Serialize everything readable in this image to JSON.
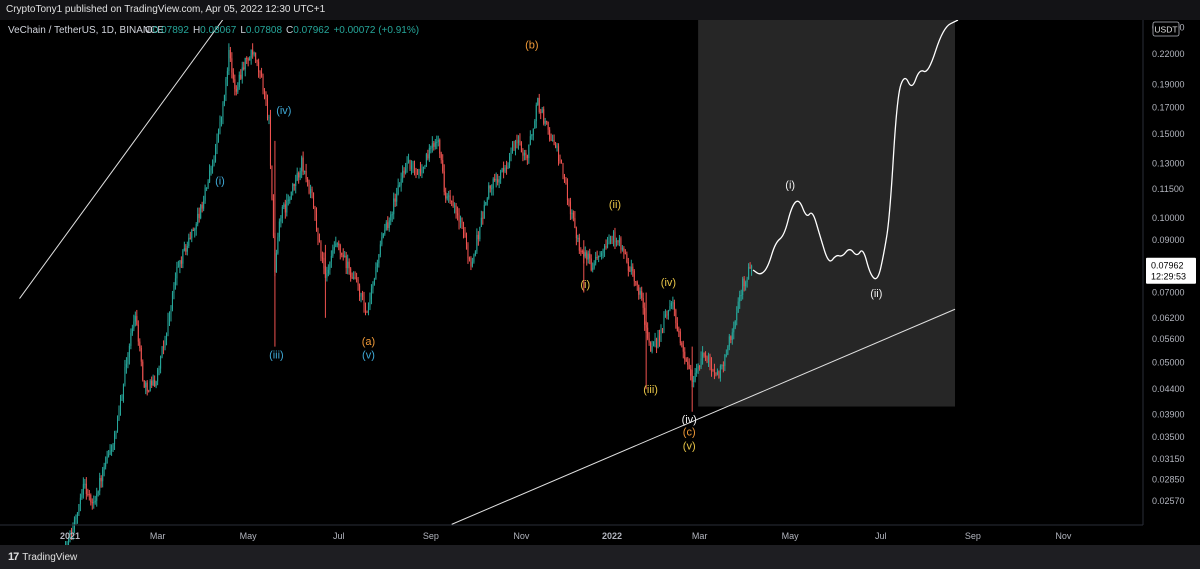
{
  "header": {
    "published": "CryptoTony1 published on TradingView.com, Apr 05, 2022 12:30 UTC+1"
  },
  "footer": {
    "brand": "TradingView"
  },
  "chart_data": {
    "type": "candlestick",
    "symbol": "VeChain / TetherUS, 1D, BINANCE",
    "ohlc": {
      "o_label": "O",
      "o": "0.07892",
      "h_label": "H",
      "h": "0.08067",
      "l_label": "L",
      "l": "0.07808",
      "c_label": "C",
      "c": "0.07962",
      "change": "+0.00072 (+0.91%)"
    },
    "currency": "USDT",
    "last_price": "0.07962",
    "countdown": "12:29:53",
    "y_scale": "log",
    "y_ticks": [
      "0.25000",
      "0.22000",
      "0.19000",
      "0.17000",
      "0.15000",
      "0.13000",
      "0.11500",
      "0.10000",
      "0.09000",
      "0.08000",
      "0.07000",
      "0.06200",
      "0.05600",
      "0.05000",
      "0.04400",
      "0.03900",
      "0.03500",
      "0.03150",
      "0.02850",
      "0.02570"
    ],
    "x_ticks": [
      {
        "label": "2021",
        "date": "2021-01-01",
        "bold": true
      },
      {
        "label": "Mar",
        "date": "2021-03-01"
      },
      {
        "label": "May",
        "date": "2021-05-01"
      },
      {
        "label": "Jul",
        "date": "2021-07-01"
      },
      {
        "label": "Sep",
        "date": "2021-09-01"
      },
      {
        "label": "Nov",
        "date": "2021-11-01"
      },
      {
        "label": "2022",
        "date": "2022-01-01",
        "bold": true
      },
      {
        "label": "Mar",
        "date": "2022-03-01"
      },
      {
        "label": "May",
        "date": "2022-05-01"
      },
      {
        "label": "Jul",
        "date": "2022-07-01"
      },
      {
        "label": "Sep",
        "date": "2022-09-01"
      },
      {
        "label": "Nov",
        "date": "2022-11-01"
      }
    ],
    "price_path": [
      [
        "2020-12-28",
        0.02
      ],
      [
        "2021-01-03",
        0.0226
      ],
      [
        "2021-01-10",
        0.0282
      ],
      [
        "2021-01-16",
        0.0252
      ],
      [
        "2021-01-24",
        0.03
      ],
      [
        "2021-02-01",
        0.0355
      ],
      [
        "2021-02-08",
        0.0502
      ],
      [
        "2021-02-14",
        0.064
      ],
      [
        "2021-02-20",
        0.0442
      ],
      [
        "2021-02-28",
        0.046
      ],
      [
        "2021-03-06",
        0.056
      ],
      [
        "2021-03-14",
        0.078
      ],
      [
        "2021-03-22",
        0.09
      ],
      [
        "2021-03-30",
        0.104
      ],
      [
        "2021-04-08",
        0.135
      ],
      [
        "2021-04-14",
        0.17
      ],
      [
        "2021-04-18",
        0.22
      ],
      [
        "2021-04-22",
        0.185
      ],
      [
        "2021-04-28",
        0.21
      ],
      [
        "2021-05-04",
        0.22
      ],
      [
        "2021-05-10",
        0.195
      ],
      [
        "2021-05-15",
        0.16
      ],
      [
        "2021-05-19",
        0.075
      ],
      [
        "2021-05-22",
        0.1
      ],
      [
        "2021-05-29",
        0.11
      ],
      [
        "2021-06-06",
        0.13
      ],
      [
        "2021-06-13",
        0.11
      ],
      [
        "2021-06-22",
        0.074
      ],
      [
        "2021-06-29",
        0.088
      ],
      [
        "2021-07-07",
        0.079
      ],
      [
        "2021-07-14",
        0.072
      ],
      [
        "2021-07-20",
        0.062
      ],
      [
        "2021-07-28",
        0.085
      ],
      [
        "2021-08-08",
        0.11
      ],
      [
        "2021-08-15",
        0.13
      ],
      [
        "2021-08-25",
        0.125
      ],
      [
        "2021-09-06",
        0.15
      ],
      [
        "2021-09-10",
        0.115
      ],
      [
        "2021-09-22",
        0.096
      ],
      [
        "2021-09-28",
        0.08
      ],
      [
        "2021-10-10",
        0.115
      ],
      [
        "2021-10-20",
        0.125
      ],
      [
        "2021-10-28",
        0.145
      ],
      [
        "2021-11-05",
        0.135
      ],
      [
        "2021-11-12",
        0.175
      ],
      [
        "2021-11-17",
        0.158
      ],
      [
        "2021-11-26",
        0.135
      ],
      [
        "2021-12-04",
        0.105
      ],
      [
        "2021-12-10",
        0.088
      ],
      [
        "2021-12-18",
        0.08
      ],
      [
        "2021-12-27",
        0.089
      ],
      [
        "2022-01-04",
        0.092
      ],
      [
        "2022-01-10",
        0.082
      ],
      [
        "2022-01-20",
        0.07
      ],
      [
        "2022-01-27",
        0.052
      ],
      [
        "2022-02-04",
        0.059
      ],
      [
        "2022-02-10",
        0.068
      ],
      [
        "2022-02-17",
        0.054
      ],
      [
        "2022-02-24",
        0.046
      ],
      [
        "2022-03-04",
        0.052
      ],
      [
        "2022-03-14",
        0.047
      ],
      [
        "2022-03-23",
        0.058
      ],
      [
        "2022-03-30",
        0.073
      ],
      [
        "2022-04-05",
        0.0796
      ]
    ],
    "projection_path": [
      [
        "2022-04-06",
        0.078
      ],
      [
        "2022-04-11",
        0.076
      ],
      [
        "2022-04-16",
        0.079
      ],
      [
        "2022-04-21",
        0.089
      ],
      [
        "2022-04-27",
        0.092
      ],
      [
        "2022-05-02",
        0.106
      ],
      [
        "2022-05-07",
        0.11
      ],
      [
        "2022-05-12",
        0.1
      ],
      [
        "2022-05-16",
        0.104
      ],
      [
        "2022-05-21",
        0.092
      ],
      [
        "2022-05-27",
        0.08
      ],
      [
        "2022-06-01",
        0.084
      ],
      [
        "2022-06-05",
        0.083
      ],
      [
        "2022-06-10",
        0.087
      ],
      [
        "2022-06-15",
        0.083
      ],
      [
        "2022-06-19",
        0.087
      ],
      [
        "2022-06-24",
        0.076
      ],
      [
        "2022-06-29",
        0.074
      ],
      [
        "2022-07-03",
        0.084
      ],
      [
        "2022-07-07",
        0.1
      ],
      [
        "2022-07-12",
        0.18
      ],
      [
        "2022-07-17",
        0.2
      ],
      [
        "2022-07-22",
        0.185
      ],
      [
        "2022-07-27",
        0.205
      ],
      [
        "2022-08-02",
        0.2
      ],
      [
        "2022-08-12",
        0.25
      ],
      [
        "2022-08-22",
        0.28
      ]
    ],
    "shaded_region": {
      "x0": "2022-02-28",
      "x1": "2022-08-20",
      "y_top": 0.28,
      "y_bottom": 0.0405
    },
    "trendlines": [
      {
        "x0": "2020-11-28",
        "y0": 0.068,
        "x1": "2021-04-18",
        "y1": 0.27
      },
      {
        "x0": "2021-09-15",
        "y0": 0.023,
        "x1": "2022-08-20",
        "y1": 0.0646
      }
    ],
    "wave_labels": [
      {
        "text": "(i)",
        "date": "2021-04-12",
        "price": 0.12,
        "color": "#3fa9d6"
      },
      {
        "text": "(iii)",
        "date": "2021-05-20",
        "price": 0.052,
        "color": "#3fa9d6"
      },
      {
        "text": "(iv)",
        "date": "2021-05-25",
        "price": 0.168,
        "color": "#3fa9d6"
      },
      {
        "text": "(a)",
        "date": "2021-07-21",
        "price": 0.0555,
        "color": "#f19a38"
      },
      {
        "text": "(v)",
        "date": "2021-07-21",
        "price": 0.052,
        "color": "#3fa9d6"
      },
      {
        "text": "(b)",
        "date": "2021-11-08",
        "price": 0.23,
        "color": "#f19a38"
      },
      {
        "text": "(i)",
        "date": "2021-12-14",
        "price": 0.073,
        "color": "#e8c547"
      },
      {
        "text": "(ii)",
        "date": "2022-01-03",
        "price": 0.107,
        "color": "#e8c547"
      },
      {
        "text": "(iii)",
        "date": "2022-01-27",
        "price": 0.044,
        "color": "#e8c547"
      },
      {
        "text": "(iv)",
        "date": "2022-02-08",
        "price": 0.0736,
        "color": "#e8c547"
      },
      {
        "text": "(iv)",
        "date": "2022-02-22",
        "price": 0.0381,
        "color": "#f0f0f0"
      },
      {
        "text": "(c)",
        "date": "2022-02-22",
        "price": 0.0359,
        "color": "#f19a38"
      },
      {
        "text": "(v)",
        "date": "2022-02-22",
        "price": 0.0336,
        "color": "#e8c547"
      },
      {
        "text": "(i)",
        "date": "2022-05-01",
        "price": 0.1175,
        "color": "#f0f0f0"
      },
      {
        "text": "(ii)",
        "date": "2022-06-28",
        "price": 0.0698,
        "color": "#f0f0f0"
      }
    ]
  }
}
